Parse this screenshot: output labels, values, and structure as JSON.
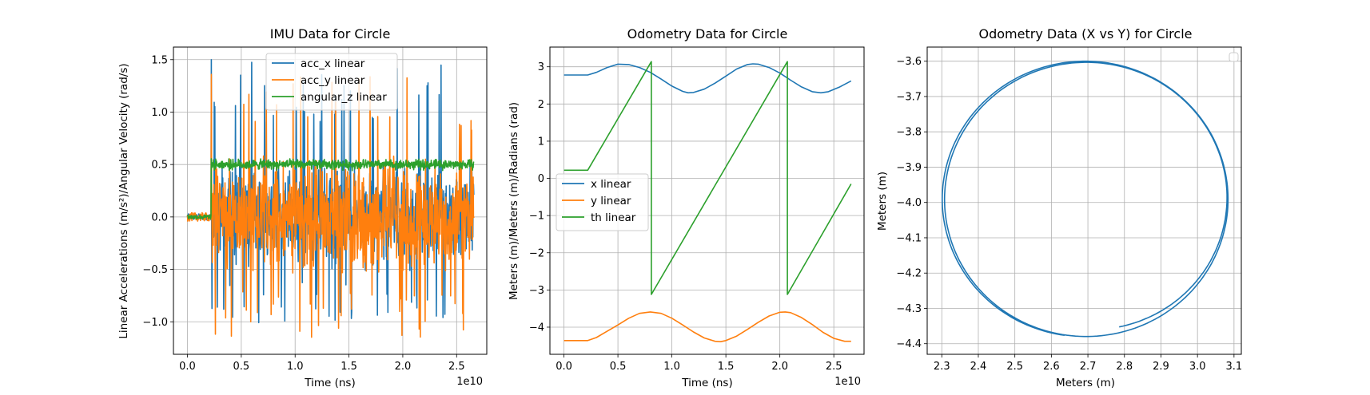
{
  "chart_data": [
    {
      "type": "line",
      "title": "IMU Data for Circle",
      "xlabel": "Time (ns)",
      "ylabel": "Linear Accelerations (m/s²)/Angular Velocity (rad/s)",
      "x_offset_text": "1e10",
      "xlim": [
        -0.13,
        2.78
      ],
      "ylim": [
        -1.31,
        1.62
      ],
      "xticks": [
        0.0,
        0.5,
        1.0,
        1.5,
        2.0,
        2.5
      ],
      "xtick_labels": [
        "0.0",
        "0.5",
        "1.0",
        "1.5",
        "2.0",
        "2.5"
      ],
      "yticks": [
        -1.0,
        -0.5,
        0.0,
        0.5,
        1.0,
        1.5
      ],
      "ytick_labels": [
        "−1.0",
        "−0.5",
        "0.0",
        "0.5",
        "1.0",
        "1.5"
      ],
      "grid": true,
      "legend_position": "upper center",
      "series": [
        {
          "name": "acc_x linear",
          "color": "#1f77b4",
          "kind": "noise",
          "x_start": 0.0,
          "x_end": 2.66,
          "onset": 0.22,
          "pre_amplitude": 0.03,
          "amplitude": 0.55,
          "peak_max": 1.5,
          "peak_min": -1.02
        },
        {
          "name": "acc_y linear",
          "color": "#ff7f0e",
          "kind": "noise",
          "x_start": 0.0,
          "x_end": 2.66,
          "onset": 0.22,
          "pre_amplitude": 0.04,
          "amplitude": 0.62,
          "peak_max": 1.36,
          "peak_min": -1.16
        },
        {
          "name": "angular_z linear",
          "color": "#2ca02c",
          "kind": "noise",
          "x_start": 0.0,
          "x_end": 2.66,
          "onset": 0.22,
          "level_before": 0.0,
          "level_after": 0.5,
          "pre_amplitude": 0.02,
          "amplitude": 0.06
        }
      ]
    },
    {
      "type": "line",
      "title": "Odometry Data for Circle",
      "xlabel": "Time (ns)",
      "ylabel": "Meters (m)/Meters (m)/Radians (rad)",
      "x_offset_text": "1e10",
      "xlim": [
        -0.13,
        2.78
      ],
      "ylim": [
        -4.73,
        3.53
      ],
      "xticks": [
        0.0,
        0.5,
        1.0,
        1.5,
        2.0,
        2.5
      ],
      "xtick_labels": [
        "0.0",
        "0.5",
        "1.0",
        "1.5",
        "2.0",
        "2.5"
      ],
      "yticks": [
        -4,
        -3,
        -2,
        -1,
        0,
        1,
        2,
        3
      ],
      "ytick_labels": [
        "−4",
        "−3",
        "−2",
        "−1",
        "0",
        "1",
        "2",
        "3"
      ],
      "grid": true,
      "legend_position": "center left",
      "series": [
        {
          "name": "x linear",
          "color": "#1f77b4",
          "points": [
            [
              0.0,
              2.78
            ],
            [
              0.22,
              2.78
            ],
            [
              0.3,
              2.85
            ],
            [
              0.4,
              2.98
            ],
            [
              0.5,
              3.07
            ],
            [
              0.6,
              3.06
            ],
            [
              0.7,
              2.98
            ],
            [
              0.8,
              2.85
            ],
            [
              0.9,
              2.67
            ],
            [
              1.0,
              2.48
            ],
            [
              1.1,
              2.34
            ],
            [
              1.15,
              2.3
            ],
            [
              1.2,
              2.31
            ],
            [
              1.3,
              2.4
            ],
            [
              1.4,
              2.56
            ],
            [
              1.5,
              2.75
            ],
            [
              1.6,
              2.94
            ],
            [
              1.7,
              3.06
            ],
            [
              1.75,
              3.08
            ],
            [
              1.8,
              3.07
            ],
            [
              1.9,
              2.98
            ],
            [
              2.0,
              2.83
            ],
            [
              2.1,
              2.64
            ],
            [
              2.2,
              2.46
            ],
            [
              2.3,
              2.33
            ],
            [
              2.38,
              2.3
            ],
            [
              2.45,
              2.33
            ],
            [
              2.55,
              2.45
            ],
            [
              2.66,
              2.62
            ]
          ]
        },
        {
          "name": "y linear",
          "color": "#ff7f0e",
          "points": [
            [
              0.0,
              -4.36
            ],
            [
              0.22,
              -4.36
            ],
            [
              0.3,
              -4.28
            ],
            [
              0.4,
              -4.11
            ],
            [
              0.5,
              -3.94
            ],
            [
              0.6,
              -3.76
            ],
            [
              0.7,
              -3.63
            ],
            [
              0.8,
              -3.59
            ],
            [
              0.9,
              -3.63
            ],
            [
              1.0,
              -3.76
            ],
            [
              1.1,
              -3.94
            ],
            [
              1.2,
              -4.13
            ],
            [
              1.3,
              -4.29
            ],
            [
              1.4,
              -4.38
            ],
            [
              1.45,
              -4.39
            ],
            [
              1.5,
              -4.36
            ],
            [
              1.6,
              -4.24
            ],
            [
              1.7,
              -4.06
            ],
            [
              1.8,
              -3.87
            ],
            [
              1.9,
              -3.7
            ],
            [
              2.0,
              -3.6
            ],
            [
              2.05,
              -3.59
            ],
            [
              2.1,
              -3.61
            ],
            [
              2.2,
              -3.74
            ],
            [
              2.3,
              -3.93
            ],
            [
              2.4,
              -4.14
            ],
            [
              2.5,
              -4.3
            ],
            [
              2.6,
              -4.38
            ],
            [
              2.66,
              -4.38
            ]
          ]
        },
        {
          "name": "th linear",
          "color": "#2ca02c",
          "points": [
            [
              0.0,
              0.22
            ],
            [
              0.22,
              0.22
            ],
            [
              0.81,
              3.14
            ],
            [
              0.81,
              -3.12
            ],
            [
              2.07,
              3.14
            ],
            [
              2.07,
              -3.12
            ],
            [
              2.66,
              -0.15
            ]
          ]
        }
      ]
    },
    {
      "type": "line",
      "title": "Odometry Data (X vs Y) for Circle",
      "xlabel": "Meters (m)",
      "ylabel": "Meters (m)",
      "xlim": [
        2.26,
        3.12
      ],
      "ylim": [
        -4.43,
        -3.56
      ],
      "xticks": [
        2.3,
        2.4,
        2.5,
        2.6,
        2.7,
        2.8,
        2.9,
        3.0,
        3.1
      ],
      "xtick_labels": [
        "2.3",
        "2.4",
        "2.5",
        "2.6",
        "2.7",
        "2.8",
        "2.9",
        "3.0",
        "3.1"
      ],
      "yticks": [
        -4.4,
        -4.3,
        -4.2,
        -4.1,
        -4.0,
        -3.9,
        -3.8,
        -3.7,
        -3.6
      ],
      "ytick_labels": [
        "−4.4",
        "−4.3",
        "−4.2",
        "−4.1",
        "−4.0",
        "−3.9",
        "−3.8",
        "−3.7",
        "−3.6"
      ],
      "grid": true,
      "legend_position": "upper right",
      "series": [
        {
          "color": "#1f77b4",
          "kind": "circle",
          "center": [
            2.69,
            -3.99
          ],
          "radius": 0.39,
          "turns": 1.4,
          "start_point": [
            2.775,
            -4.35
          ],
          "end_point": [
            2.635,
            -4.385
          ]
        }
      ]
    }
  ]
}
